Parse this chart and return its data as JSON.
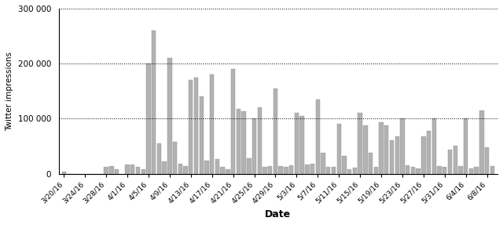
{
  "dates": [
    "3/20/16",
    "3/21/16",
    "3/22/16",
    "3/23/16",
    "3/24/16",
    "3/25/16",
    "3/26/16",
    "3/27/16",
    "3/28/16",
    "3/29/16",
    "3/30/16",
    "3/31/16",
    "4/1/16",
    "4/2/16",
    "4/3/16",
    "4/4/16",
    "4/5/16",
    "4/6/16",
    "4/7/16",
    "4/8/16",
    "4/9/16",
    "4/10/16",
    "4/11/16",
    "4/12/16",
    "4/13/16",
    "4/14/16",
    "4/15/16",
    "4/16/16",
    "4/17/16",
    "4/18/16",
    "4/19/16",
    "4/20/16",
    "4/21/16",
    "4/22/16",
    "4/23/16",
    "4/24/16",
    "4/25/16",
    "4/26/16",
    "4/27/16",
    "4/28/16",
    "4/29/16",
    "4/30/16",
    "5/1/16",
    "5/2/16",
    "5/3/16",
    "5/4/16",
    "5/5/16",
    "5/6/16",
    "5/7/16",
    "5/8/16",
    "5/9/16",
    "5/10/16",
    "5/11/16",
    "5/12/16",
    "5/13/16",
    "5/14/16",
    "5/15/16",
    "5/16/16",
    "5/17/16",
    "5/18/16",
    "5/19/16",
    "5/20/16",
    "5/21/16",
    "5/22/16",
    "5/23/16",
    "5/24/16",
    "5/25/16",
    "5/26/16",
    "5/27/16",
    "5/28/16",
    "5/29/16",
    "5/30/16",
    "5/31/16",
    "6/1/16",
    "6/2/16",
    "6/3/16",
    "6/4/16",
    "6/5/16",
    "6/6/16",
    "6/7/16",
    "6/8/16",
    "6/9/16"
  ],
  "values": [
    3000,
    0,
    0,
    0,
    0,
    0,
    0,
    0,
    12000,
    14000,
    8000,
    0,
    16000,
    17000,
    12000,
    8000,
    200000,
    260000,
    55000,
    22000,
    210000,
    58000,
    18000,
    14000,
    170000,
    175000,
    140000,
    24000,
    180000,
    27000,
    12000,
    8000,
    190000,
    118000,
    114000,
    28000,
    100000,
    120000,
    12000,
    13000,
    155000,
    14000,
    12000,
    15000,
    110000,
    105000,
    17000,
    18000,
    135000,
    38000,
    12000,
    12000,
    90000,
    32000,
    8000,
    11000,
    110000,
    88000,
    38000,
    12000,
    93000,
    88000,
    60000,
    68000,
    100000,
    15000,
    12000,
    10000,
    68000,
    78000,
    100000,
    13000,
    12000,
    44000,
    50000,
    14000,
    100000,
    10000,
    12000,
    115000,
    48000,
    14000
  ],
  "xtick_labels": [
    "3/20/16",
    "3/24/16",
    "3/28/16",
    "4/1/16",
    "4/5/16",
    "4/9/16",
    "4/13/16",
    "4/17/16",
    "4/21/16",
    "4/25/16",
    "4/29/16",
    "5/3/16",
    "5/7/16",
    "5/11/16",
    "5/15/16",
    "5/19/16",
    "5/23/16",
    "5/27/16",
    "5/31/16",
    "6/4/16",
    "6/8/16"
  ],
  "xtick_positions": [
    0,
    4,
    8,
    12,
    16,
    20,
    24,
    28,
    32,
    36,
    40,
    44,
    48,
    52,
    56,
    60,
    64,
    68,
    72,
    76,
    80
  ],
  "bar_color": "#b2b2b2",
  "bar_edgecolor": "#909090",
  "ylabel": "Twitter impressions",
  "xlabel": "Date",
  "ylim": [
    0,
    300000
  ],
  "yticks": [
    0,
    100000,
    200000,
    300000
  ],
  "ytick_labels": [
    "0",
    "100 000",
    "200 000",
    "300 000"
  ],
  "grid_color": "#000000",
  "background_color": "#ffffff"
}
